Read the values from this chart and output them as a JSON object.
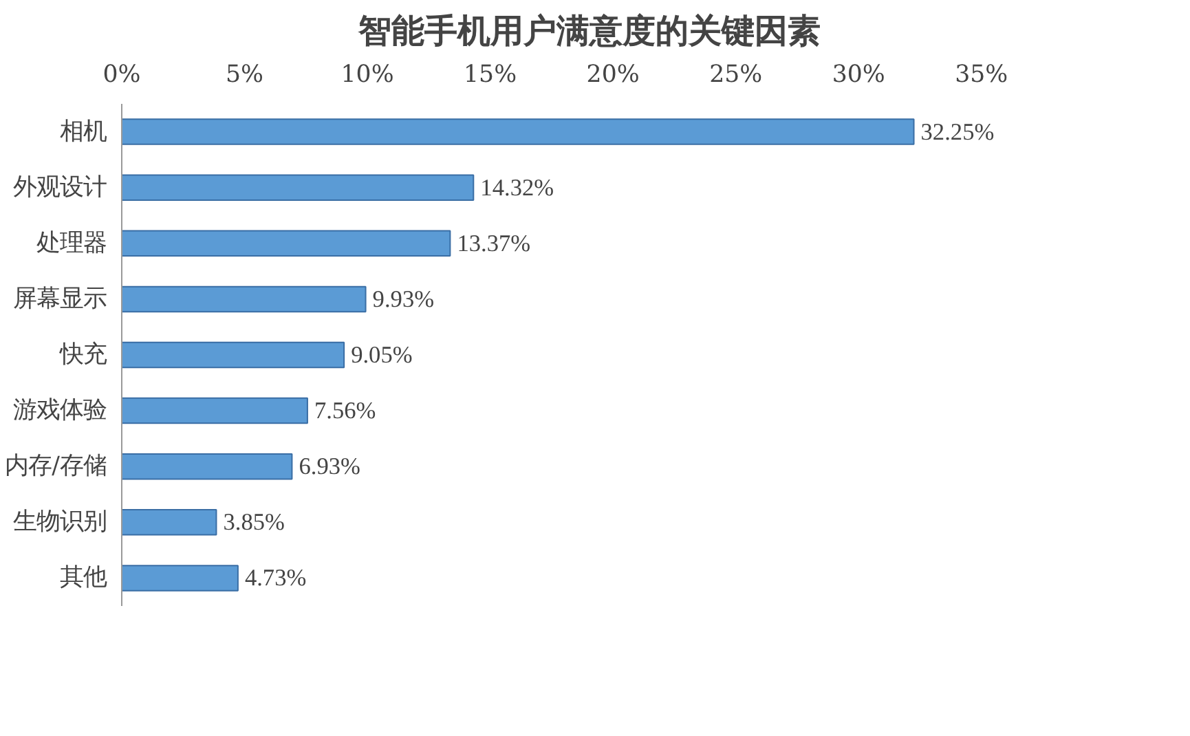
{
  "chart_data": {
    "type": "bar",
    "orientation": "horizontal",
    "title": "智能手机用户满意度的关键因素",
    "categories": [
      "相机",
      "外观设计",
      "处理器",
      "屏幕显示",
      "快充",
      "游戏体验",
      "内存/存储",
      "生物识别",
      "其他"
    ],
    "values": [
      32.25,
      14.32,
      13.37,
      9.93,
      9.05,
      7.56,
      6.93,
      3.85,
      4.73
    ],
    "value_labels": [
      "32.25%",
      "14.32%",
      "13.37%",
      "9.93%",
      "9.05%",
      "7.56%",
      "6.93%",
      "3.85%",
      "4.73%"
    ],
    "color": "#5b9bd5",
    "xlim": [
      0,
      35
    ],
    "xticks": [
      {
        "value": 0,
        "label": "0%"
      },
      {
        "value": 5,
        "label": "5%"
      },
      {
        "value": 10,
        "label": "10%"
      },
      {
        "value": 15,
        "label": "15%"
      },
      {
        "value": 20,
        "label": "20%"
      },
      {
        "value": 25,
        "label": "25%"
      },
      {
        "value": 30,
        "label": "30%"
      },
      {
        "value": 35,
        "label": "35%"
      }
    ],
    "grid": false
  }
}
